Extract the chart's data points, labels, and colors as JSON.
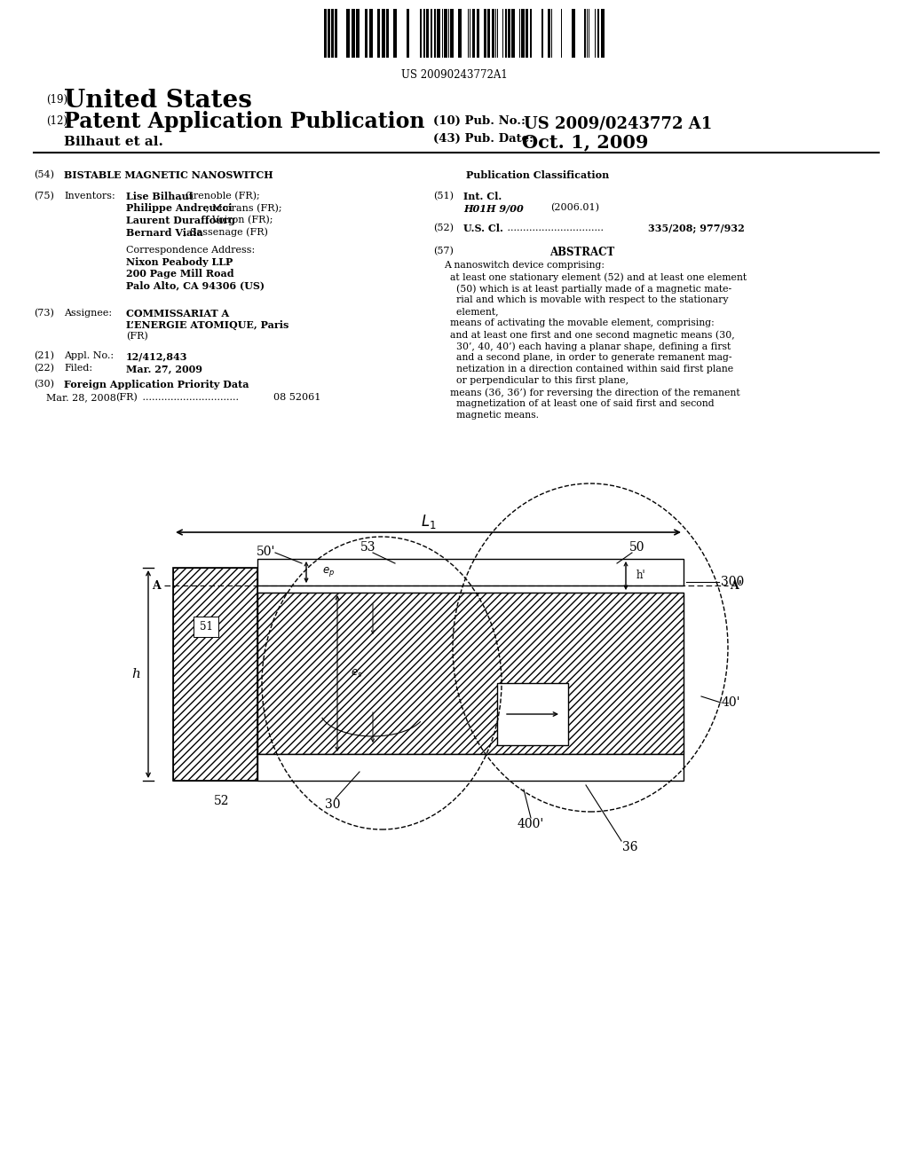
{
  "title": "BISTABLE MAGNETIC NANOSWITCH",
  "barcode_text": "US 20090243772A1",
  "header_19": "(19)",
  "header_19_text": "United States",
  "header_12": "(12)",
  "header_12_text": "Patent Application Publication",
  "header_10": "(10) Pub. No.:",
  "header_10_val": "US 2009/0243772 A1",
  "header_bilhaut": "Bilhaut et al.",
  "header_43": "(43) Pub. Date:",
  "header_43_val": "Oct. 1, 2009",
  "field_54": "(54)",
  "field_54_label": "BISTABLE MAGNETIC NANOSWITCH",
  "field_75": "(75)",
  "field_75_label": "Inventors:",
  "inv1_bold": "Lise Bilhaut",
  "inv1_rest": ", Grenoble (FR);",
  "inv2_bold": "Philippe Andreucci",
  "inv2_rest": ", Moirans (FR);",
  "inv3_bold": "Laurent Duraffourg",
  "inv3_rest": ", Voiron (FR);",
  "inv4_bold": "Bernard Viala",
  "inv4_rest": ", Sassenage (FR)",
  "corr_label": "Correspondence Address:",
  "corr_name": "Nixon Peabody LLP",
  "corr_addr1": "200 Page Mill Road",
  "corr_addr2": "Palo Alto, CA 94306 (US)",
  "field_73": "(73)",
  "field_73_label": "Assignee:",
  "assignee1": "COMMISSARIAT A",
  "assignee2": "L’ENERGIE ATOMIQUE, Paris",
  "assignee3": "(FR)",
  "field_21": "(21)",
  "field_21_label": "Appl. No.:",
  "field_21_val": "12/412,843",
  "field_22": "(22)",
  "field_22_label": "Filed:",
  "field_22_val": "Mar. 27, 2009",
  "field_30": "(30)",
  "field_30_label": "Foreign Application Priority Data",
  "foreign_date": "Mar. 28, 2008",
  "foreign_country": "(FR)",
  "foreign_dots": " ...............................",
  "foreign_num": "08 52061",
  "pub_class_label": "Publication Classification",
  "field_51": "(51)",
  "field_51_label": "Int. Cl.",
  "field_51_class": "H01H 9/00",
  "field_51_year": "(2006.01)",
  "field_52": "(52)",
  "field_52_label": "U.S. Cl.",
  "field_52_dots": " ...............................",
  "field_52_val": "335/208; 977/932",
  "field_57": "(57)",
  "abstract_label": "ABSTRACT",
  "abstract_lines": [
    "A nanoswitch device comprising:",
    "  at least one stationary element (52) and at least one element",
    "    (50) which is at least partially made of a magnetic mate-",
    "    rial and which is movable with respect to the stationary",
    "    element,",
    "  means of activating the movable element, comprising:",
    "  and at least one first and one second magnetic means (30,",
    "    30’, 40, 40’) each having a planar shape, defining a first",
    "    and a second plane, in order to generate remanent mag-",
    "    netization in a direction contained within said first plane",
    "    or perpendicular to this first plane,",
    "  means (36, 36’) for reversing the direction of the remanent",
    "    magnetization of at least one of said first and second",
    "    magnetic means."
  ],
  "bg_color": "#ffffff"
}
